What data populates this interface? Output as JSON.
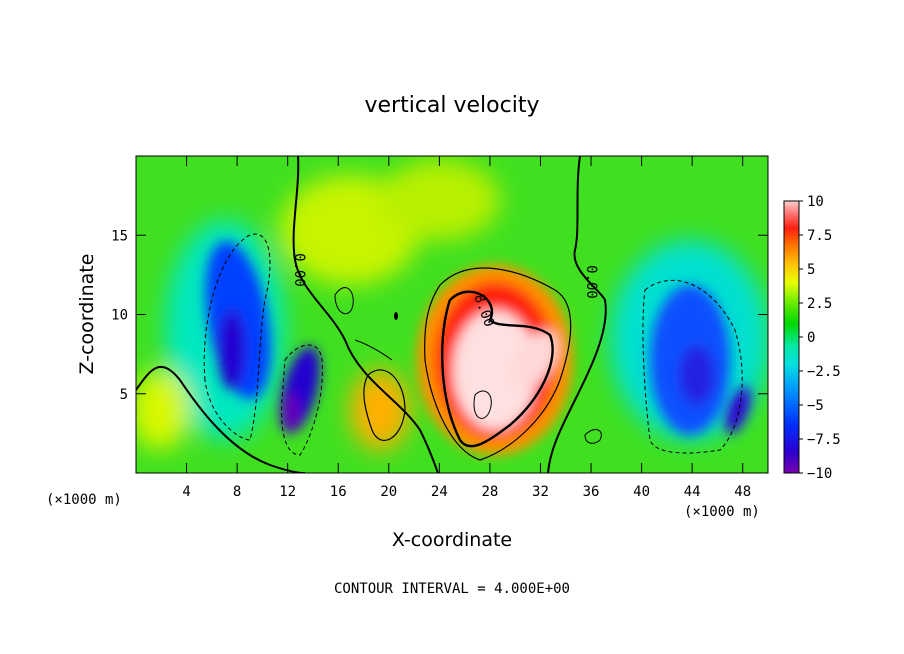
{
  "chart_data": {
    "type": "heatmap",
    "title": "vertical velocity",
    "xlabel": "X-coordinate",
    "ylabel": "Z-coordinate",
    "x_unit_left": "(×1000 m)",
    "x_unit_right": "(×1000 m)",
    "xlim": [
      0,
      50
    ],
    "ylim": [
      0,
      20
    ],
    "xticks": [
      4,
      8,
      12,
      16,
      20,
      24,
      28,
      32,
      36,
      40,
      44,
      48
    ],
    "yticks": [
      5,
      10,
      15
    ],
    "colorbar": {
      "ticks": [
        10,
        7.5,
        5,
        2.5,
        0,
        -2.5,
        -5,
        -7.5,
        -10
      ],
      "tick_labels": [
        "10",
        "7.5",
        "5",
        "2.5",
        "0",
        "−2.5",
        "−5",
        "−7.5",
        "−10"
      ],
      "range": [
        -10,
        10
      ],
      "colors": [
        "#7a00b0",
        "#2a00d0",
        "#0030ff",
        "#0090ff",
        "#00e0e0",
        "#00e8a0",
        "#00d800",
        "#70ec00",
        "#e8ff00",
        "#ffc000",
        "#ff7000",
        "#ff2010",
        "#ff8080",
        "#ffd0d0"
      ]
    },
    "contour_labels": [
      {
        "text": "0.00",
        "x": 10.5,
        "z": 13
      },
      {
        "text": "8.00",
        "x": 27.2,
        "z": 10.5
      },
      {
        "text": "0.00",
        "x": 35.8,
        "z": 12.5
      }
    ],
    "features": [
      {
        "sign": "negative",
        "x": 8.0,
        "z": 10.0,
        "peak": -7
      },
      {
        "sign": "negative",
        "x": 12.5,
        "z": 4.0,
        "peak": -10
      },
      {
        "sign": "positive",
        "x": 27.5,
        "z": 7.0,
        "peak": 12
      },
      {
        "sign": "positive",
        "x": 19.5,
        "z": 4.0,
        "peak": 4
      },
      {
        "sign": "negative",
        "x": 44.0,
        "z": 7.0,
        "peak": -7
      },
      {
        "sign": "negative",
        "x": 47.0,
        "z": 3.5,
        "peak": -10
      }
    ],
    "grid": false,
    "legend": "right"
  },
  "footer_text": "CONTOUR INTERVAL = 4.000E+00"
}
